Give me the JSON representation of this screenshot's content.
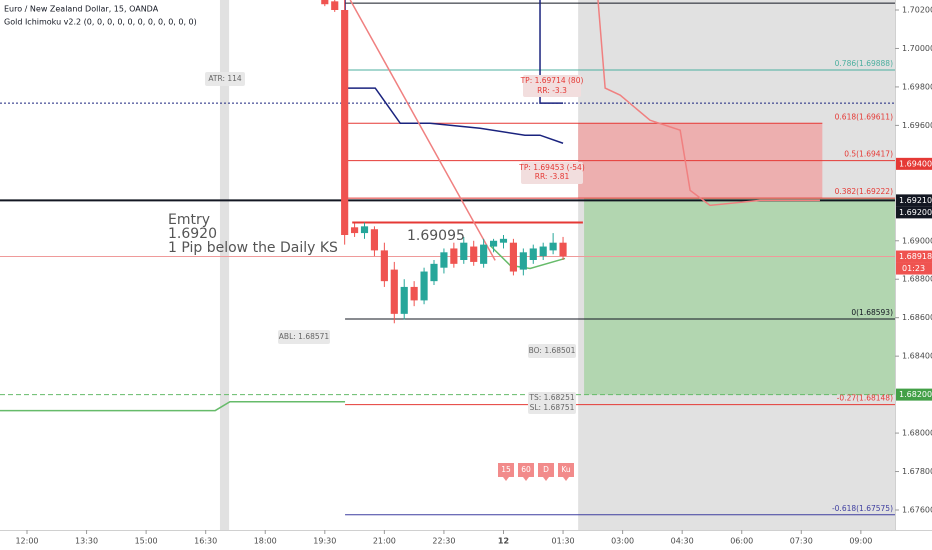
{
  "header": {
    "symbol": "Euro / New Zealand Dollar, 15, OANDA",
    "indicator": "Gold Ichimoku v2.2 (0, 0, 0, 0, 0, 0, 0, 0, 0, 0, 0)"
  },
  "chart_data": {
    "type": "candlestick",
    "xlim": [
      11.32,
      33.86
    ],
    "ylim": [
      1.67496,
      1.70252
    ],
    "xticks": [
      {
        "value": 12,
        "label": "12:00"
      },
      {
        "value": 13.5,
        "label": "13:30"
      },
      {
        "value": 15,
        "label": "15:00"
      },
      {
        "value": 16.5,
        "label": "16:30"
      },
      {
        "value": 18,
        "label": "18:00"
      },
      {
        "value": 19.5,
        "label": "19:30"
      },
      {
        "value": 21,
        "label": "21:00"
      },
      {
        "value": 22.5,
        "label": "22:30"
      },
      {
        "value": 24,
        "label": "12"
      },
      {
        "value": 25.5,
        "label": "01:30"
      },
      {
        "value": 27,
        "label": "03:00"
      },
      {
        "value": 28.5,
        "label": "04:30"
      },
      {
        "value": 30,
        "label": "06:00"
      },
      {
        "value": 31.5,
        "label": "07:30"
      },
      {
        "value": 33,
        "label": "09:00"
      }
    ],
    "yticks": [
      {
        "value": 1.702,
        "label": "1.70200"
      },
      {
        "value": 1.7,
        "label": "1.70000"
      },
      {
        "value": 1.698,
        "label": "1.69800"
      },
      {
        "value": 1.696,
        "label": "1.69600"
      },
      {
        "value": 1.69,
        "label": "1.69000"
      },
      {
        "value": 1.688,
        "label": "1.68800"
      },
      {
        "value": 1.686,
        "label": "1.68600"
      },
      {
        "value": 1.684,
        "label": "1.68400"
      },
      {
        "value": 1.68,
        "label": "1.68000"
      },
      {
        "value": 1.678,
        "label": "1.67800"
      },
      {
        "value": 1.676,
        "label": "1.67600"
      }
    ],
    "up_color": "#26a69a",
    "down_color": "#ef5350",
    "x": [
      19.5,
      19.75,
      20,
      20.25,
      20.5,
      20.75,
      21,
      21.25,
      21.5,
      21.75,
      22,
      22.25,
      22.5,
      22.75,
      23,
      23.25,
      23.5,
      23.75,
      24,
      24.25,
      24.5,
      24.75,
      25,
      25.25,
      25.5
    ],
    "open": [
      1.70252,
      1.70245,
      1.702,
      1.6907,
      1.6904,
      1.6906,
      1.6895,
      1.6885,
      1.6862,
      1.6876,
      1.6869,
      1.6879,
      1.6886,
      1.6896,
      1.689,
      1.6897,
      1.6888,
      1.6897,
      1.6899,
      1.6899,
      1.6885,
      1.689,
      1.6892,
      1.6895,
      1.6899
    ],
    "high": [
      1.70252,
      1.70252,
      1.70252,
      1.6909,
      1.69095,
      1.69075,
      1.6899,
      1.6889,
      1.688,
      1.6879,
      1.6886,
      1.689,
      1.6896,
      1.6899,
      1.6902,
      1.69,
      1.6901,
      1.6901,
      1.6903,
      1.6901,
      1.6896,
      1.6898,
      1.6899,
      1.6904,
      1.6902
    ],
    "low": [
      1.7022,
      1.7019,
      1.6898,
      1.6902,
      1.6901,
      1.6892,
      1.6876,
      1.68571,
      1.6859,
      1.6866,
      1.6867,
      1.6877,
      1.6883,
      1.6886,
      1.6888,
      1.6887,
      1.6886,
      1.6894,
      1.6896,
      1.6882,
      1.6882,
      1.6888,
      1.689,
      1.6893,
      1.689
    ],
    "close": [
      1.7023,
      1.702,
      1.6903,
      1.6904,
      1.69075,
      1.6895,
      1.6879,
      1.6862,
      1.6876,
      1.6869,
      1.6884,
      1.6888,
      1.6894,
      1.6888,
      1.6899,
      1.6889,
      1.6898,
      1.69,
      1.6901,
      1.6884,
      1.6894,
      1.6896,
      1.6897,
      1.6899,
      1.6892
    ],
    "zones": [
      {
        "color": "#dcdcdc",
        "x": [
          16.86,
          17.09
        ],
        "y": [
          1.67496,
          1.70252
        ]
      },
      {
        "color": "#dcdcdc",
        "x": [
          25.88,
          33.86
        ],
        "y": [
          1.67496,
          1.70252
        ]
      },
      {
        "color": "#eea6a6",
        "x": [
          25.88,
          32.03
        ],
        "y": [
          1.69222,
          1.69611
        ]
      },
      {
        "color": "#a9d4a7",
        "x": [
          26.03,
          33.86
        ],
        "y": [
          1.682,
          1.69222
        ]
      }
    ],
    "levels": [
      {
        "value": 1.70236,
        "x": [
          20.01,
          33.86
        ],
        "color": "#131722"
      },
      {
        "value": 1.69888,
        "x": [
          20.01,
          33.86
        ],
        "color": "#4caf9f",
        "label": "0.786(1.69888)"
      },
      {
        "value": 1.69716,
        "x": [
          11.32,
          33.86
        ],
        "color": "#1a237e",
        "style": "dotted"
      },
      {
        "value": 1.69611,
        "x": [
          20.01,
          32.03
        ],
        "color": "#e53935",
        "label": "0.618(1.69611)"
      },
      {
        "value": 1.69417,
        "x": [
          20.01,
          33.86
        ],
        "color": "#e53935",
        "label": "0.5(1.69417)"
      },
      {
        "value": 1.69222,
        "x": [
          20.01,
          33.86
        ],
        "color": "#e53935",
        "label": "0.382(1.69222)"
      },
      {
        "value": 1.6921,
        "x": [
          11.32,
          33.86
        ],
        "color": "#131722",
        "style": "thick"
      },
      {
        "value": 1.69095,
        "x": [
          20.19,
          26.0
        ],
        "color": "#e53935",
        "style": "thick"
      },
      {
        "value": 1.68918,
        "x": [
          11.32,
          33.86
        ],
        "color": "#ef9a9a"
      },
      {
        "value": 1.68593,
        "x": [
          20.01,
          33.86
        ],
        "color": "#131722",
        "label": "0(1.68593)"
      },
      {
        "value": 1.682,
        "x": [
          11.32,
          33.86
        ],
        "color": "#66bb6a",
        "style": "dashed"
      },
      {
        "value": 1.68148,
        "x": [
          20.01,
          33.86
        ],
        "color": "#e53935",
        "label": "-0.27(1.68148)"
      },
      {
        "value": 1.67575,
        "x": [
          20.01,
          33.86
        ],
        "color": "#3f3fa0",
        "label": "-0.618(1.67575)"
      }
    ],
    "lines": [
      {
        "color": "#1a237e",
        "x": [
          20.01,
          20.01,
          20.77,
          21.4,
          22.15,
          23.41,
          24.54,
          24.92,
          25.5
        ],
        "values": [
          1.70252,
          1.69794,
          1.69794,
          1.69611,
          1.69611,
          1.69585,
          1.69549,
          1.69549,
          1.69507
        ]
      },
      {
        "color": "#1a237e",
        "x": [
          24.92,
          24.92,
          25.5
        ],
        "values": [
          1.70252,
          1.69716,
          1.69716
        ]
      },
      {
        "color": "#f08080",
        "x": [
          20.14,
          23.79
        ],
        "values": [
          1.70252,
          1.68898
        ]
      },
      {
        "color": "#f08080",
        "x": [
          26.38,
          26.56,
          26.94,
          27.69,
          28.45,
          28.7,
          29.2,
          30.46,
          31.97
        ],
        "values": [
          1.70252,
          1.69794,
          1.69757,
          1.69627,
          1.69575,
          1.69262,
          1.69184,
          1.6921,
          1.6921
        ]
      },
      {
        "color": "#66bb6a",
        "x": [
          11.32,
          16.74,
          17.11,
          20.01
        ],
        "values": [
          1.68117,
          1.68117,
          1.68163,
          1.68163
        ]
      },
      {
        "color": "#66bb6a",
        "x": [
          23.66,
          24.17,
          24.67,
          25.55
        ],
        "values": [
          1.68976,
          1.68872,
          1.68856,
          1.68908
        ]
      }
    ],
    "price_markers": [
      {
        "value": 1.694,
        "label": "1.69400",
        "color": "#e53935"
      },
      {
        "value": 1.6921,
        "label": "1.69210",
        "color": "#131722"
      },
      {
        "value": 1.692,
        "label": "1.69200",
        "color": "#131722"
      },
      {
        "value": 1.68918,
        "label": "1.68918",
        "color": "#ef5350"
      },
      {
        "value": 1.682,
        "label": "1.68200",
        "color": "#43a047"
      }
    ],
    "countdown": "01:23",
    "annotations": {
      "entry": [
        "Emtry",
        "1.6920",
        "1 Pip below the Daily KS"
      ],
      "entry_price": "1.69095",
      "atr": "ATR: 114",
      "abl": "ABL: 1.68571",
      "bo": "BO: 1.68501",
      "tp1": [
        "TP: 1.69714 (80)",
        "RR: -3.3"
      ],
      "tp2": [
        "TP: 1.69453 (-54)",
        "RR: -3.81"
      ],
      "ts_sl": [
        "TS: 1.68251",
        "SL: 1.68751"
      ]
    },
    "timeframes": [
      "15",
      "60",
      "D",
      "Ku"
    ]
  }
}
